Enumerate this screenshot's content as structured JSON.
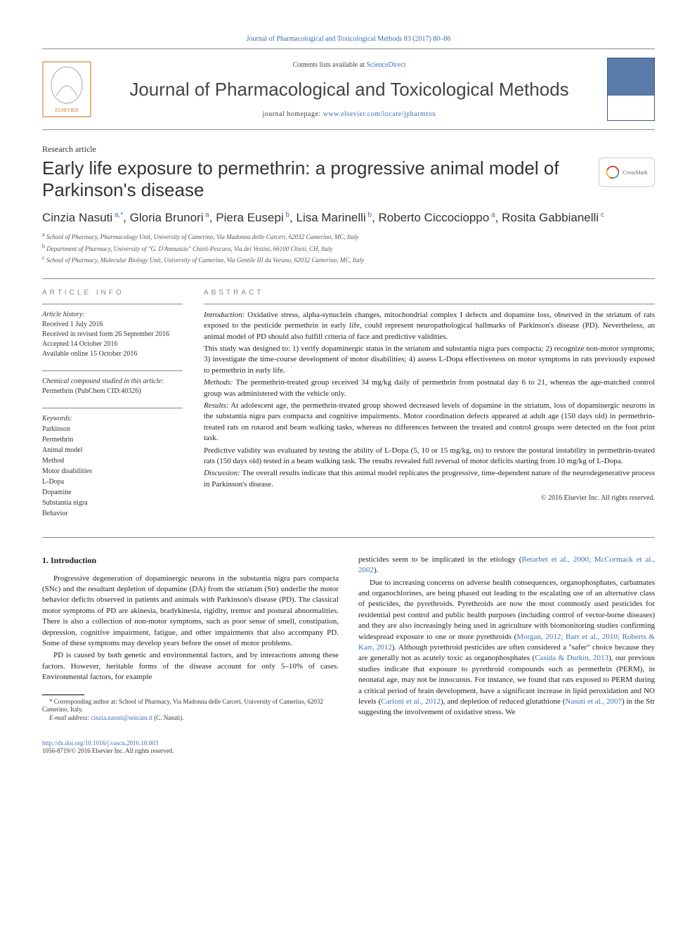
{
  "topLink": "Journal of Pharmacological and Toxicological Methods 83 (2017) 80–86",
  "header": {
    "contentsPrefix": "Contents lists available at ",
    "contentsLink": "ScienceDirect",
    "journalName": "Journal of Pharmacological and Toxicological Methods",
    "homepagePrefix": "journal homepage: ",
    "homepageLink": "www.elsevier.com/locate/jpharmtox"
  },
  "articleType": "Research article",
  "title": "Early life exposure to permethrin: a progressive animal model of Parkinson's disease",
  "crossmark": "CrossMark",
  "authors": [
    {
      "name": "Cinzia Nasuti",
      "sup": " a,",
      "corr": "*"
    },
    {
      "name": "Gloria Brunori",
      "sup": " a"
    },
    {
      "name": "Piera Eusepi",
      "sup": " b"
    },
    {
      "name": "Lisa Marinelli",
      "sup": " b"
    },
    {
      "name": "Roberto Ciccocioppo",
      "sup": " a"
    },
    {
      "name": "Rosita Gabbianelli",
      "sup": " c"
    }
  ],
  "affiliations": [
    {
      "sup": "a",
      "text": "School of Pharmacy, Pharmacology Unit, University of Camerino, Via Madonna delle Carceri, 62032 Camerino, MC, Italy"
    },
    {
      "sup": "b",
      "text": "Department of Pharmacy, University of \"G. D'Annunzio\" Chieti-Pescara, Via dei Vestini, 66100 Chieti, CH, Italy"
    },
    {
      "sup": "c",
      "text": "School of Pharmacy, Molecular Biology Unit, University of Camerino, Via Gentile III da Varano, 62032 Camerino, MC, Italy"
    }
  ],
  "articleInfo": {
    "heading": "article info",
    "historyLabel": "Article history:",
    "history": [
      "Received 1 July 2016",
      "Received in revised form 26 September 2016",
      "Accepted 14 October 2016",
      "Available online 15 October 2016"
    ],
    "compoundLabel": "Chemical compound studied in this article:",
    "compound": "Permethrin (PubChem CID:40326)",
    "keywordsLabel": "Keywords:",
    "keywords": [
      "Parkinson",
      "Permethrin",
      "Animal model",
      "Method",
      "Motor disabilities",
      "L-Dopa",
      "Dopamine",
      "Substantia nigra",
      "Behavior"
    ]
  },
  "abstract": {
    "heading": "abstract",
    "paragraphs": [
      {
        "label": "Introduction:",
        "text": " Oxidative stress, alpha-synuclein changes, mitochondrial complex I defects and dopamine loss, observed in the striatum of rats exposed to the pesticide permethrin in early life, could represent neuropathological hallmarks of Parkinson's disease (PD). Nevertheless, an animal model of PD should also fulfill criteria of face and predictive validities."
      },
      {
        "label": "",
        "text": "This study was designed to: 1) verify dopaminergic status in the striatum and substantia nigra pars compacta; 2) recognize non-motor symptoms; 3) investigate the time-course development of motor disabilities; 4) assess L-Dopa effectiveness on motor symptoms in rats previously exposed to permethrin in early life."
      },
      {
        "label": "Methods:",
        "text": " The permethrin-treated group received 34 mg/kg daily of permethrin from postnatal day 6 to 21, whereas the age-matched control group was administered with the vehicle only."
      },
      {
        "label": "Results:",
        "text": " At adolescent age, the permethrin-treated group showed decreased levels of dopamine in the striatum, loss of dopaminergic neurons in the substantia nigra pars compacta and cognitive impairments. Motor coordination defects appeared at adult age (150 days old) in permethrin-treated rats on rotarod and beam walking tasks, whereas no differences between the treated and control groups were detected on the foot print task."
      },
      {
        "label": "",
        "text": "Predictive validity was evaluated by testing the ability of L-Dopa (5, 10 or 15 mg/kg, os) to restore the postural instability in permethrin-treated rats (150 days old) tested in a beam walking task. The results revealed full reversal of motor deficits starting from 10 mg/kg of L-Dopa."
      },
      {
        "label": "Discussion:",
        "text": " The overall results indicate that this animal model replicates the progressive, time-dependent nature of the neurodegenerative process in Parkinson's disease."
      }
    ],
    "copyright": "© 2016 Elsevier Inc. All rights reserved."
  },
  "intro": {
    "heading": "1. Introduction",
    "col1": [
      "Progressive degeneration of dopaminergic neurons in the substantia nigra pars compacta (SNc) and the resultant depletion of dopamine (DA) from the striatum (Str) underlie the motor behavior deficits observed in patients and animals with Parkinson's disease (PD). The classical motor symptoms of PD are akinesia, bradykinesia, rigidity, tremor and postural abnormalities. There is also a collection of non-motor symptoms, such as poor sense of smell, constipation, depression, cognitive impairment, fatigue, and other impairments that also accompany PD. Some of these symptoms may develop years before the onset of motor problems.",
      "PD is caused by both genetic and environmental factors, and by interactions among these factors. However, heritable forms of the disease account for only 5–10% of cases. Environmental factors, for example"
    ],
    "col2pre": "pesticides seem to be implicated in the etiology (",
    "col2link1": "Betarbet et al., 2000; McCormack et al., 2002",
    "col2post1": ").",
    "col2p2a": "Due to increasing concerns on adverse health consequences, organophosphates, carbamates and organochlorines, are being phased out leading to the escalating use of an alternative class of pesticides, the pyrethroids. Pyrethroids are now the most commonly used pesticides for residential pest control and public health purposes (including control of vector-borne diseases) and they are also increasingly being used in agriculture with biomonitoring studies confirming widespread exposure to one or more pyrethroids (",
    "col2link2": "Morgan, 2012; Barr et al., 2010; Roberts & Karr, 2012",
    "col2p2b": "). Although pyrethroid pesticides are often considered a \"safer\" choice because they are generally not as acutely toxic as organophosphates (",
    "col2link3": "Casida & Durkin, 2013",
    "col2p2c": "), our previous studies indicate that exposure to pyrethroid compounds such as permethrin (PERM), in neonatal age, may not be innocuous. For instance, we found that rats exposed to PERM during a critical period of brain development, have a significant increase in lipid peroxidation and NO levels (",
    "col2link4": "Carloni et al., 2012",
    "col2p2d": "), and depletion of reduced glutathione (",
    "col2link5": "Nasuti et al., 2007",
    "col2p2e": ") in the Str suggesting the involvement of oxidative stress. We"
  },
  "footnotes": {
    "corr": "* Corresponding author at: School of Pharmacy, Via Madonna delle Carceri, University of Camerino, 62032 Camerino, Italy.",
    "emailLabel": "E-mail address:",
    "email": "cinzia.nasuti@unicam.it",
    "emailSuffix": " (C. Nasuti)."
  },
  "doi": {
    "url": "http://dx.doi.org/10.1016/j.vascn.2016.10.003",
    "line2": "1056-8719/© 2016 Elsevier Inc. All rights reserved."
  },
  "colors": {
    "link": "#3b6fb5",
    "rule": "#888888",
    "text": "#222222"
  }
}
